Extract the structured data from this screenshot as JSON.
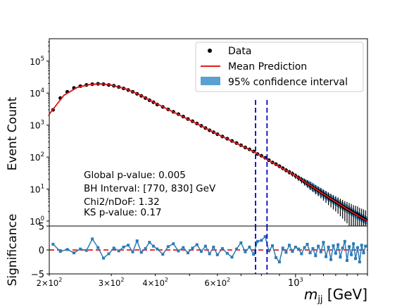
{
  "chart_data": [
    {
      "type": "scatter",
      "xscale": "log",
      "yscale": "log",
      "xlim": [
        200,
        1600
      ],
      "ylim": [
        0.7,
        500000
      ],
      "ylabel": "Event Count",
      "ytick_labels": [
        "10^0",
        "10^1",
        "10^2",
        "10^3",
        "10^4",
        "10^5"
      ],
      "ytick_values": [
        1,
        10,
        100,
        1000,
        10000,
        100000
      ],
      "legend": {
        "placement": "top-right",
        "entries": [
          "Data",
          "Mean Prediction",
          "95% confidence interval"
        ]
      },
      "annotations": [
        "Global p-value: 0.005",
        "BH Interval: [770, 830] GeV",
        "Chi2/nDoF: 1.32",
        "KS p-value: 0.17"
      ],
      "bump_hunter_interval": [
        770,
        830
      ],
      "colors": {
        "data": "#000000",
        "prediction": "#e41a1c",
        "band": "#3d8fcb",
        "interval_lines": "#0000cc"
      },
      "data_points": [
        [
          205,
          3000
        ],
        [
          215,
          7000
        ],
        [
          225,
          11000
        ],
        [
          235,
          14500
        ],
        [
          245,
          16500
        ],
        [
          255,
          18000
        ],
        [
          265,
          19000
        ],
        [
          275,
          19500
        ],
        [
          285,
          19000
        ],
        [
          295,
          18000
        ],
        [
          305,
          17000
        ],
        [
          315,
          15500
        ],
        [
          325,
          14000
        ],
        [
          335,
          12500
        ],
        [
          345,
          11000
        ],
        [
          355,
          9500
        ],
        [
          365,
          8200
        ],
        [
          375,
          7000
        ],
        [
          385,
          6000
        ],
        [
          395,
          5200
        ],
        [
          405,
          4400
        ],
        [
          420,
          3700
        ],
        [
          435,
          3100
        ],
        [
          450,
          2600
        ],
        [
          465,
          2200
        ],
        [
          480,
          1850
        ],
        [
          495,
          1550
        ],
        [
          510,
          1320
        ],
        [
          525,
          1120
        ],
        [
          540,
          950
        ],
        [
          555,
          810
        ],
        [
          570,
          690
        ],
        [
          585,
          600
        ],
        [
          600,
          520
        ],
        [
          620,
          440
        ],
        [
          640,
          375
        ],
        [
          660,
          320
        ],
        [
          680,
          275
        ],
        [
          700,
          235
        ],
        [
          720,
          200
        ],
        [
          740,
          175
        ],
        [
          760,
          150
        ],
        [
          780,
          125
        ],
        [
          800,
          110
        ],
        [
          820,
          95
        ],
        [
          840,
          80
        ],
        [
          860,
          68
        ],
        [
          880,
          60
        ],
        [
          900,
          52
        ],
        [
          920,
          45
        ],
        [
          940,
          39
        ],
        [
          960,
          34
        ],
        [
          980,
          30
        ],
        [
          1000,
          26
        ],
        [
          1020,
          22.5
        ],
        [
          1040,
          19.5
        ],
        [
          1060,
          17
        ],
        [
          1080,
          15
        ],
        [
          1100,
          13
        ],
        [
          1120,
          11.5
        ],
        [
          1140,
          10
        ],
        [
          1160,
          9
        ],
        [
          1180,
          8
        ],
        [
          1200,
          7
        ],
        [
          1220,
          6.2
        ],
        [
          1240,
          5.5
        ],
        [
          1260,
          4.9
        ],
        [
          1280,
          4.4
        ],
        [
          1300,
          4
        ],
        [
          1320,
          3.6
        ],
        [
          1340,
          3.2
        ],
        [
          1360,
          2.9
        ],
        [
          1380,
          2.6
        ],
        [
          1400,
          2.4
        ],
        [
          1420,
          2.2
        ],
        [
          1440,
          2
        ],
        [
          1460,
          1.8
        ],
        [
          1480,
          1.7
        ],
        [
          1500,
          1.6
        ],
        [
          1520,
          1.4
        ],
        [
          1540,
          1.3
        ],
        [
          1560,
          1.2
        ],
        [
          1580,
          1.1
        ]
      ],
      "prediction": [
        [
          200,
          2200
        ],
        [
          220,
          8500
        ],
        [
          240,
          15000
        ],
        [
          260,
          18500
        ],
        [
          280,
          19500
        ],
        [
          300,
          17800
        ],
        [
          330,
          13500
        ],
        [
          360,
          9000
        ],
        [
          400,
          4900
        ],
        [
          450,
          2550
        ],
        [
          500,
          1450
        ],
        [
          550,
          850
        ],
        [
          600,
          520
        ],
        [
          650,
          340
        ],
        [
          700,
          230
        ],
        [
          750,
          160
        ],
        [
          800,
          108
        ],
        [
          850,
          72
        ],
        [
          900,
          50
        ],
        [
          950,
          36
        ],
        [
          1000,
          26
        ],
        [
          1100,
          13
        ],
        [
          1200,
          7
        ],
        [
          1300,
          4
        ],
        [
          1400,
          2.4
        ],
        [
          1500,
          1.5
        ],
        [
          1600,
          1.0
        ]
      ]
    },
    {
      "type": "line",
      "xscale": "log",
      "xlim": [
        200,
        1600
      ],
      "ylim": [
        -5,
        5
      ],
      "ylabel": "Significance",
      "xlabel": "m_jj [GeV]",
      "ytick_labels": [
        "-5",
        "0",
        "5"
      ],
      "ytick_values": [
        -5,
        0,
        5
      ],
      "xtick_labels": [
        "2×10^2",
        "3×10^2",
        "4×10^2",
        "6×10^2",
        "10^3"
      ],
      "xtick_values": [
        200,
        300,
        400,
        600,
        1000
      ],
      "reference_line": 0,
      "colors": {
        "series": "#2c7bb6",
        "reference": "#e41a1c"
      },
      "values": [
        [
          205,
          1.2
        ],
        [
          215,
          -0.3
        ],
        [
          225,
          0.1
        ],
        [
          235,
          -0.6
        ],
        [
          245,
          0.2
        ],
        [
          255,
          -0.1
        ],
        [
          265,
          2.3
        ],
        [
          275,
          0.5
        ],
        [
          285,
          -1.7
        ],
        [
          295,
          -0.8
        ],
        [
          305,
          0.4
        ],
        [
          315,
          -0.2
        ],
        [
          325,
          0.6
        ],
        [
          335,
          1.0
        ],
        [
          345,
          -0.4
        ],
        [
          355,
          1.9
        ],
        [
          365,
          -0.5
        ],
        [
          375,
          0.3
        ],
        [
          385,
          1.6
        ],
        [
          395,
          0.8
        ],
        [
          405,
          0.2
        ],
        [
          420,
          -0.9
        ],
        [
          435,
          0.7
        ],
        [
          450,
          1.3
        ],
        [
          465,
          -0.2
        ],
        [
          480,
          0.5
        ],
        [
          495,
          -0.6
        ],
        [
          510,
          0.4
        ],
        [
          525,
          1.1
        ],
        [
          540,
          -0.3
        ],
        [
          555,
          0.8
        ],
        [
          570,
          -0.8
        ],
        [
          585,
          0.6
        ],
        [
          600,
          -1.0
        ],
        [
          620,
          0.3
        ],
        [
          640,
          -0.7
        ],
        [
          660,
          -1.5
        ],
        [
          680,
          0.2
        ],
        [
          700,
          1.5
        ],
        [
          720,
          -0.4
        ],
        [
          740,
          0.6
        ],
        [
          760,
          -0.9
        ],
        [
          780,
          1.8
        ],
        [
          800,
          2.0
        ],
        [
          820,
          2.8
        ],
        [
          840,
          -0.2
        ],
        [
          860,
          0.9
        ],
        [
          880,
          -1.6
        ],
        [
          900,
          -2.5
        ],
        [
          920,
          0.4
        ],
        [
          940,
          -0.5
        ],
        [
          960,
          1.0
        ],
        [
          980,
          -0.3
        ],
        [
          1000,
          0.6
        ],
        [
          1020,
          0.2
        ],
        [
          1040,
          -0.8
        ],
        [
          1060,
          0.5
        ],
        [
          1080,
          1.2
        ],
        [
          1100,
          -0.6
        ],
        [
          1120,
          0.3
        ],
        [
          1140,
          -1.2
        ],
        [
          1160,
          0.8
        ],
        [
          1180,
          -0.4
        ],
        [
          1200,
          1.6
        ],
        [
          1220,
          -1.4
        ],
        [
          1240,
          0.6
        ],
        [
          1260,
          -2.0
        ],
        [
          1280,
          0.9
        ],
        [
          1300,
          -0.7
        ],
        [
          1320,
          1.1
        ],
        [
          1340,
          -1.5
        ],
        [
          1360,
          0.4
        ],
        [
          1380,
          1.8
        ],
        [
          1400,
          -2.2
        ],
        [
          1420,
          0.7
        ],
        [
          1440,
          -1.0
        ],
        [
          1460,
          1.3
        ],
        [
          1480,
          -1.8
        ],
        [
          1500,
          0.5
        ],
        [
          1520,
          -2.5
        ],
        [
          1540,
          1.0
        ],
        [
          1560,
          -0.6
        ],
        [
          1580,
          0.8
        ]
      ]
    }
  ]
}
